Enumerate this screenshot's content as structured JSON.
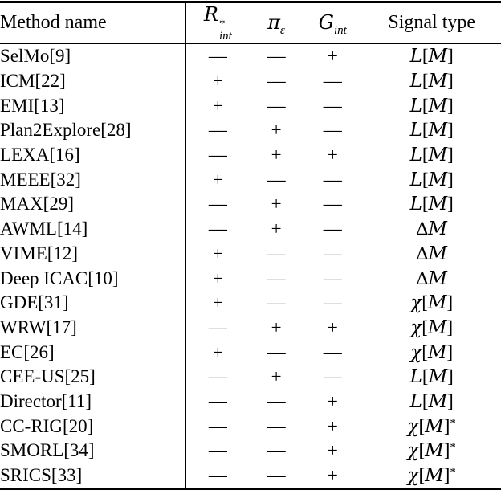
{
  "table": {
    "columns": {
      "method": "Method name",
      "r": {
        "base": "R",
        "sup": "*",
        "sub": "int"
      },
      "pi": {
        "base": "π",
        "sub": "ε"
      },
      "g": {
        "base": "G",
        "sub": "int"
      },
      "signal": "Signal type"
    },
    "rows": [
      {
        "method": "SelMo[9]",
        "r": "—",
        "pi": "—",
        "g": "+",
        "signal": "ℒ[ℳ]"
      },
      {
        "method": "ICM[22]",
        "r": "+",
        "pi": "—",
        "g": "—",
        "signal": "ℒ[ℳ]"
      },
      {
        "method": "EMI[13]",
        "r": "+",
        "pi": "—",
        "g": "—",
        "signal": "ℒ[ℳ]"
      },
      {
        "method": "Plan2Explore[28]",
        "r": "—",
        "pi": "+",
        "g": "—",
        "signal": "ℒ[ℳ]"
      },
      {
        "method": "LEXA[16]",
        "r": "—",
        "pi": "+",
        "g": "+",
        "signal": "ℒ[ℳ]"
      },
      {
        "method": "MEEE[32]",
        "r": "+",
        "pi": "—",
        "g": "—",
        "signal": "ℒ[ℳ]"
      },
      {
        "method": "MAX[29]",
        "r": "—",
        "pi": "+",
        "g": "—",
        "signal": "ℒ[ℳ]"
      },
      {
        "method": "AWML[14]",
        "r": "—",
        "pi": "+",
        "g": "—",
        "signal": "Δℳ"
      },
      {
        "method": "VIME[12]",
        "r": "+",
        "pi": "—",
        "g": "—",
        "signal": "Δℳ"
      },
      {
        "method": "Deep ICAC[10]",
        "r": "+",
        "pi": "—",
        "g": "—",
        "signal": "Δℳ"
      },
      {
        "method": "GDE[31]",
        "r": "+",
        "pi": "—",
        "g": "—",
        "signal": "χ[ℳ]"
      },
      {
        "method": "WRW[17]",
        "r": "—",
        "pi": "+",
        "g": "+",
        "signal": "χ[ℳ]"
      },
      {
        "method": "EC[26]",
        "r": "+",
        "pi": "—",
        "g": "—",
        "signal": "χ[ℳ]"
      },
      {
        "method": "CEE-US[25]",
        "r": "—",
        "pi": "+",
        "g": "—",
        "signal": "ℒ[ℳ]"
      },
      {
        "method": "Director[11]",
        "r": "—",
        "pi": "—",
        "g": "+",
        "signal": "ℒ[ℳ]"
      },
      {
        "method": "CC-RIG[20]",
        "r": "—",
        "pi": "—",
        "g": "+",
        "signal": "χ[ℳ]*"
      },
      {
        "method": "SMORL[34]",
        "r": "—",
        "pi": "—",
        "g": "+",
        "signal": "χ[ℳ]*"
      },
      {
        "method": "SRICS[33]",
        "r": "—",
        "pi": "—",
        "g": "+",
        "signal": "χ[ℳ]*"
      }
    ]
  },
  "colors": {
    "text": "#000000",
    "background": "#ffffff",
    "rule": "#000000"
  }
}
